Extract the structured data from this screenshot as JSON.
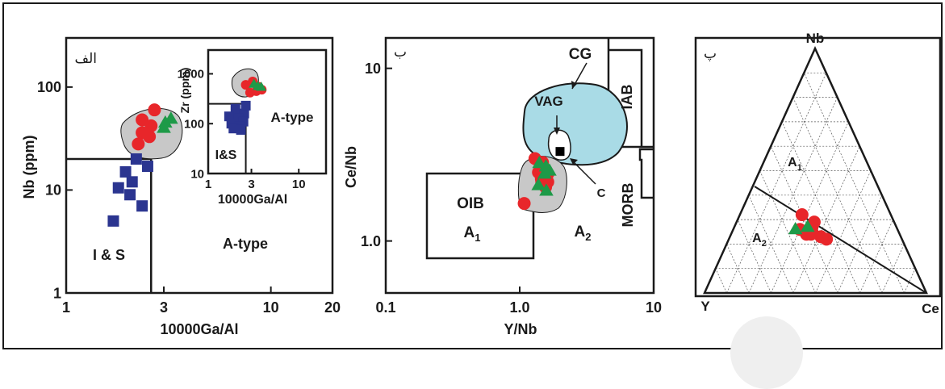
{
  "colors": {
    "frame": "#1a1a1a",
    "circle_marker": "#e8262a",
    "triangle_marker": "#1e9a48",
    "square_marker": "#2b3590",
    "cg_field": "#a9dbe6",
    "sample_field": "#c8c8c8"
  },
  "chart_data": [
    {
      "type": "scatter",
      "panel_label": "الف",
      "xscale": "log",
      "yscale": "log",
      "xlim": [
        1,
        20
      ],
      "ylim": [
        1,
        300
      ],
      "xlabel": "10000Ga/Al",
      "ylabel": "Nb (ppm)",
      "xticks": [
        "1",
        "3",
        "10",
        "20"
      ],
      "yticks": [
        "1",
        "10",
        "100"
      ],
      "fields": [
        {
          "label": "I & S"
        },
        {
          "label": "A-type"
        }
      ],
      "boundary": {
        "x_vertical": 2.6,
        "y_horizontal": 20
      },
      "series": [
        {
          "marker": "square",
          "points": [
            [
              2.2,
              20
            ],
            [
              2.5,
              17
            ],
            [
              1.95,
              15
            ],
            [
              2.1,
              12
            ],
            [
              1.8,
              10.5
            ],
            [
              2.05,
              9
            ],
            [
              2.35,
              7
            ],
            [
              1.7,
              5
            ]
          ]
        },
        {
          "marker": "circle",
          "points": [
            [
              2.7,
              60
            ],
            [
              2.35,
              48
            ],
            [
              2.6,
              42
            ],
            [
              2.35,
              36
            ],
            [
              2.55,
              33
            ],
            [
              2.25,
              28
            ]
          ]
        },
        {
          "marker": "triangle",
          "points": [
            [
              3.05,
              45
            ],
            [
              3.25,
              49
            ],
            [
              3.0,
              40
            ]
          ]
        }
      ],
      "inset": {
        "xscale": "log",
        "yscale": "log",
        "xlim": [
          1,
          20
        ],
        "ylim": [
          10,
          3000
        ],
        "xlabel": "10000Ga/Al",
        "ylabel": "Zr (ppm)",
        "xticks": [
          "1",
          "3",
          "10"
        ],
        "yticks": [
          "10",
          "100",
          "1000"
        ],
        "fields": [
          {
            "label": "I&S"
          },
          {
            "label": "A-type"
          }
        ],
        "boundary": {
          "x_vertical": 2.6,
          "y_horizontal": 250
        },
        "series": [
          {
            "marker": "square",
            "points": [
              [
                2.0,
                200
              ],
              [
                2.5,
                160
              ],
              [
                2.6,
                230
              ],
              [
                1.7,
                140
              ],
              [
                2.15,
                130
              ],
              [
                2.45,
                110
              ],
              [
                1.8,
                100
              ],
              [
                2.2,
                90
              ],
              [
                1.9,
                80
              ],
              [
                2.3,
                75
              ]
            ]
          },
          {
            "marker": "circle",
            "points": [
              [
                2.6,
                600
              ],
              [
                3.1,
                700
              ],
              [
                3.6,
                550
              ],
              [
                2.9,
                420
              ],
              [
                3.4,
                450
              ],
              [
                3.9,
                480
              ]
            ]
          },
          {
            "marker": "triangle",
            "points": [
              [
                3.55,
                560
              ],
              [
                3.85,
                540
              ],
              [
                3.2,
                620
              ]
            ]
          }
        ]
      }
    },
    {
      "type": "scatter",
      "panel_label": "ب",
      "xscale": "log",
      "yscale": "log",
      "xlim": [
        0.1,
        10
      ],
      "ylim": [
        0.5,
        15
      ],
      "xlabel": "Y/Nb",
      "ylabel": "Ce/Nb",
      "xticks": [
        "0.1",
        "1.0",
        "10"
      ],
      "yticks": [
        "1.0",
        "10"
      ],
      "fields": [
        {
          "label": "OIB"
        },
        {
          "label": "A",
          "subscript": "1"
        },
        {
          "label": "A",
          "subscript": "2"
        },
        {
          "label": "VAG"
        },
        {
          "label": "CG"
        },
        {
          "label": "IAB"
        },
        {
          "label": "MORB"
        },
        {
          "label": "C"
        }
      ],
      "series": [
        {
          "marker": "circle",
          "points": [
            [
              1.3,
              3.0
            ],
            [
              1.48,
              2.85
            ],
            [
              1.38,
              2.5
            ],
            [
              1.62,
              2.45
            ],
            [
              1.46,
              2.2
            ],
            [
              1.56,
              2.05
            ],
            [
              1.62,
              2.2
            ],
            [
              1.45,
              2.3
            ],
            [
              1.08,
              1.65
            ]
          ]
        },
        {
          "marker": "triangle",
          "points": [
            [
              1.4,
              2.82
            ],
            [
              1.57,
              2.7
            ],
            [
              1.53,
              2.45
            ],
            [
              1.67,
              2.55
            ],
            [
              1.38,
              2.1
            ],
            [
              1.58,
              1.95
            ]
          ]
        },
        {
          "marker": "square_black",
          "points": [
            [
              2.0,
              3.3
            ]
          ]
        }
      ]
    },
    {
      "type": "ternary",
      "panel_label": "پ",
      "vertices": {
        "top": "Nb",
        "left": "Y",
        "right": "Ce"
      },
      "fields": [
        {
          "label": "A",
          "subscript": "1"
        },
        {
          "label": "A",
          "subscript": "2"
        }
      ],
      "series": [
        {
          "marker": "circle",
          "points": [
            [
              32,
              40,
              28
            ],
            [
              26,
              44,
              30
            ],
            [
              27,
              38,
              35
            ],
            [
              24,
              42,
              34
            ],
            [
              29,
              36,
              35
            ],
            [
              25,
              39,
              36
            ],
            [
              23,
              36,
              41
            ],
            [
              22,
              34,
              44
            ],
            [
              24,
              40,
              36
            ]
          ]
        },
        {
          "marker": "triangle",
          "points": [
            [
              26,
              46,
              28
            ],
            [
              27,
              40,
              33
            ]
          ]
        }
      ]
    }
  ]
}
